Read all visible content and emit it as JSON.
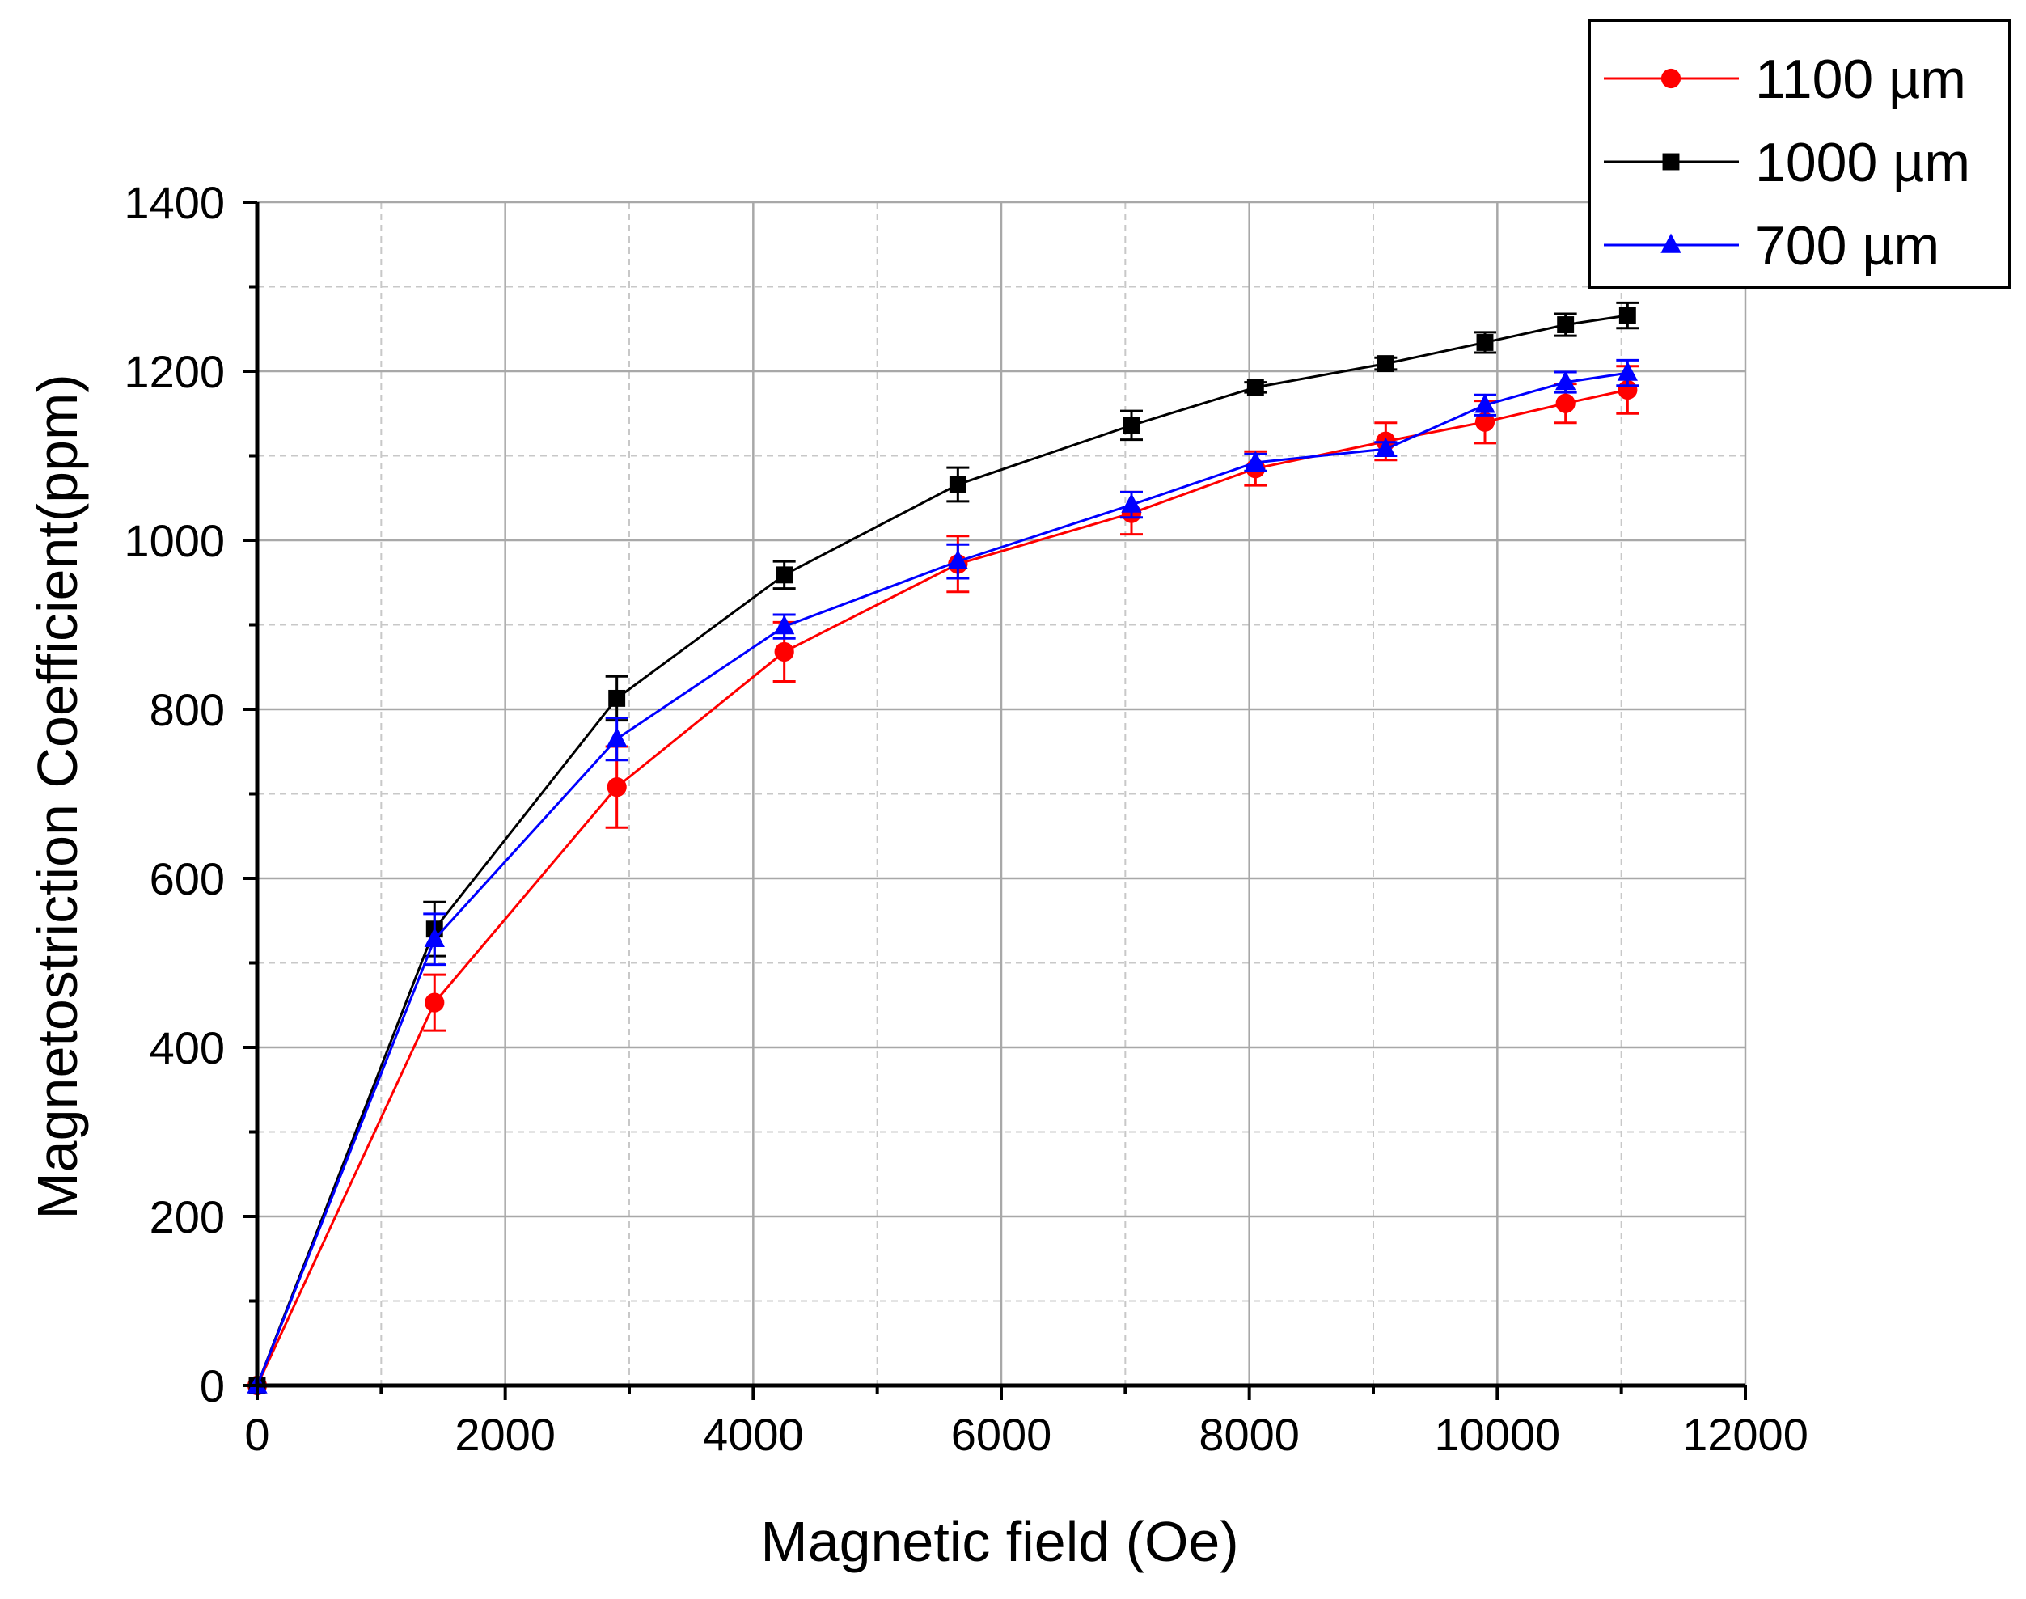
{
  "chart_data": {
    "type": "line",
    "title": "",
    "xlabel": "Magnetic field (Oe)",
    "ylabel": "Magnetostriction Coefficient(ppm)",
    "xlim": [
      0,
      12000
    ],
    "ylim": [
      0,
      1400
    ],
    "xticks": [
      0,
      2000,
      4000,
      6000,
      8000,
      10000,
      12000
    ],
    "yticks": [
      0,
      200,
      400,
      600,
      800,
      1000,
      1200,
      1400
    ],
    "xtick_labels": [
      "0",
      "2000",
      "4000",
      "6000",
      "8000",
      "10000",
      "12000"
    ],
    "ytick_labels": [
      "0",
      "200",
      "400",
      "600",
      "800",
      "1000",
      "1200",
      "1400"
    ],
    "grid": true,
    "legend_position": "top-right",
    "series": [
      {
        "name": "1100 µm",
        "color": "#ff0000",
        "marker": "circle",
        "x": [
          0,
          1430,
          2900,
          4250,
          5650,
          7050,
          8050,
          9100,
          9900,
          10550,
          11050
        ],
        "y": [
          0,
          453,
          708,
          868,
          972,
          1032,
          1085,
          1117,
          1140,
          1162,
          1178
        ],
        "err": [
          0,
          33,
          48,
          35,
          33,
          25,
          20,
          22,
          25,
          23,
          28
        ]
      },
      {
        "name": "1000 µm",
        "color": "#000000",
        "marker": "square",
        "x": [
          0,
          1430,
          2900,
          4250,
          5650,
          7050,
          8050,
          9100,
          9900,
          10550,
          11050
        ],
        "y": [
          0,
          540,
          813,
          959,
          1066,
          1136,
          1181,
          1209,
          1234,
          1255,
          1266
        ],
        "err": [
          0,
          32,
          26,
          16,
          20,
          17,
          6,
          7,
          12,
          13,
          15
        ]
      },
      {
        "name": "700 µm",
        "color": "#0000ff",
        "marker": "triangle",
        "x": [
          0,
          1430,
          2900,
          4250,
          5650,
          7050,
          8050,
          9100,
          9900,
          10550,
          11050
        ],
        "y": [
          0,
          528,
          765,
          898,
          975,
          1042,
          1092,
          1108,
          1160,
          1187,
          1198
        ],
        "err": [
          0,
          30,
          25,
          14,
          20,
          15,
          10,
          8,
          12,
          12,
          15
        ]
      }
    ]
  }
}
